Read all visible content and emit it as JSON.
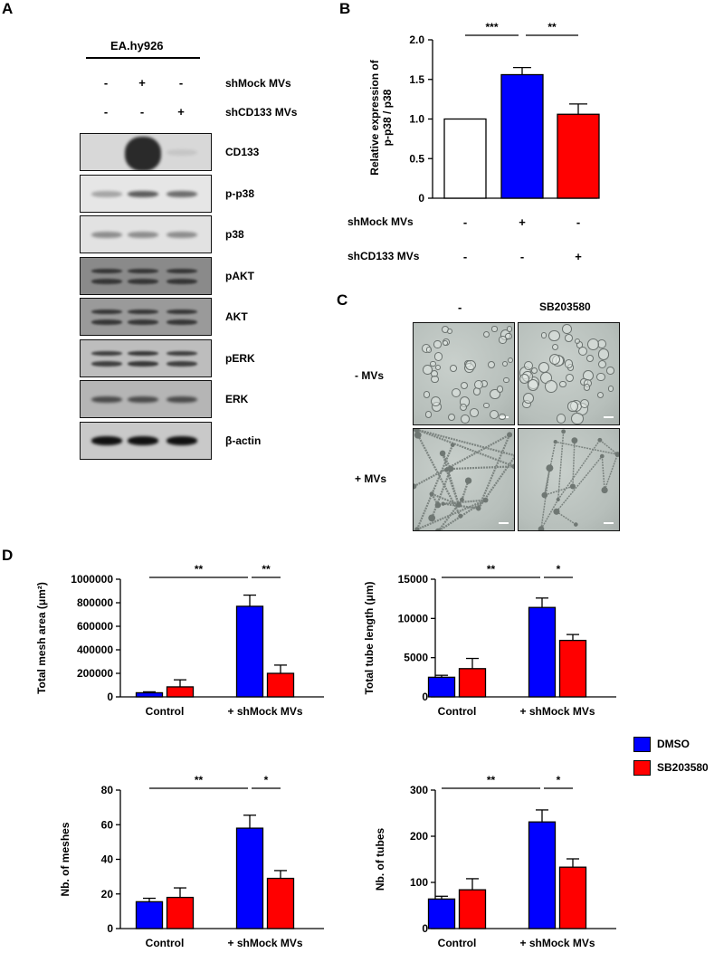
{
  "panel_a": {
    "label": "A",
    "cell_line": "EA.hy926",
    "rows": [
      {
        "name": "shMock MVs",
        "signs": [
          "-",
          "+",
          "-"
        ]
      },
      {
        "name": "shCD133 MVs",
        "signs": [
          "-",
          "-",
          "+"
        ]
      }
    ],
    "blots": [
      {
        "label": "CD133",
        "bg": "#d8d8d8",
        "band_intensity": [
          0.0,
          1.0,
          0.1
        ],
        "band_color": "#2a2a2a"
      },
      {
        "label": "p-p38",
        "bg": "#e6e6e6",
        "band_intensity": [
          0.4,
          0.85,
          0.75
        ],
        "band_color": "#444"
      },
      {
        "label": "p38",
        "bg": "#e2e2e2",
        "band_intensity": [
          0.6,
          0.6,
          0.6
        ],
        "band_color": "#555"
      },
      {
        "label": "pAKT",
        "bg": "#8a8a8a",
        "band_intensity": [
          0.9,
          0.9,
          0.9
        ],
        "band_color": "#2c2c2c"
      },
      {
        "label": "AKT",
        "bg": "#9a9a9a",
        "band_intensity": [
          0.9,
          0.9,
          0.9
        ],
        "band_color": "#2c2c2c"
      },
      {
        "label": "pERK",
        "bg": "#bdbdbd",
        "band_intensity": [
          0.85,
          0.9,
          0.85
        ],
        "band_color": "#2a2a2a"
      },
      {
        "label": "ERK",
        "bg": "#b5b5b5",
        "band_intensity": [
          0.8,
          0.8,
          0.8
        ],
        "band_color": "#303030"
      },
      {
        "label": "β-actin",
        "bg": "#c9c9c9",
        "band_intensity": [
          1.0,
          1.0,
          1.0
        ],
        "band_color": "#111"
      }
    ]
  },
  "panel_b": {
    "label": "B",
    "row_labels": [
      "shMock MVs",
      "shCD133 MVs"
    ],
    "row_signs": [
      [
        "-",
        "+",
        "-"
      ],
      [
        "-",
        "-",
        "+"
      ]
    ]
  },
  "panel_c": {
    "label": "C",
    "col_headers": [
      "-",
      "SB203580"
    ],
    "row_headers": [
      "- MVs",
      "+ MVs"
    ]
  },
  "panel_d": {
    "label": "D",
    "legend": [
      {
        "name": "DMSO",
        "color": "#0000ff"
      },
      {
        "name": "SB203580",
        "color": "#ff0000"
      }
    ]
  },
  "chart_data": [
    {
      "id": "B",
      "type": "bar",
      "ylabel": "Relative expression of\np-p38 / p38",
      "ylim": [
        0,
        2.0
      ],
      "yticks": [
        "0",
        "0.5",
        "1.0",
        "1.5",
        "2.0"
      ],
      "yticks_v": [
        0,
        0.5,
        1.0,
        1.5,
        2.0
      ],
      "values": [
        1.0,
        1.56,
        1.06
      ],
      "errors": [
        0,
        0.09,
        0.13
      ],
      "colors": [
        "#ffffff",
        "#0000ff",
        "#ff0000"
      ],
      "significance": [
        {
          "from": 0,
          "to": 1,
          "label": "***"
        },
        {
          "from": 1,
          "to": 2,
          "label": "**"
        }
      ]
    },
    {
      "id": "D1",
      "type": "bar",
      "ylabel": "Total mesh area (μm²)",
      "ylim": [
        0,
        1000000
      ],
      "yticks": [
        "0",
        "200000",
        "400000",
        "600000",
        "800000",
        "1000000"
      ],
      "yticks_v": [
        0,
        200000,
        400000,
        600000,
        800000,
        1000000
      ],
      "categories": [
        "Control",
        "+ shMock MVs"
      ],
      "series": [
        {
          "name": "DMSO",
          "values": [
            35000,
            770000
          ],
          "errors": [
            8000,
            95000
          ]
        },
        {
          "name": "SB203580",
          "values": [
            85000,
            200000
          ],
          "errors": [
            60000,
            70000
          ]
        }
      ],
      "significance": [
        {
          "label": "**",
          "span": "control-dmso"
        },
        {
          "label": "**",
          "span": "dmso-sb"
        }
      ]
    },
    {
      "id": "D2",
      "type": "bar",
      "ylabel": "Total tube length (μm)",
      "ylim": [
        0,
        15000
      ],
      "yticks": [
        "0",
        "5000",
        "10000",
        "15000"
      ],
      "yticks_v": [
        0,
        5000,
        10000,
        15000
      ],
      "categories": [
        "Control",
        "+ shMock MVs"
      ],
      "series": [
        {
          "name": "DMSO",
          "values": [
            2500,
            11400
          ],
          "errors": [
            250,
            1200
          ]
        },
        {
          "name": "SB203580",
          "values": [
            3600,
            7200
          ],
          "errors": [
            1300,
            750
          ]
        }
      ],
      "significance": [
        {
          "label": "**",
          "span": "control-dmso"
        },
        {
          "label": "*",
          "span": "dmso-sb"
        }
      ]
    },
    {
      "id": "D3",
      "type": "bar",
      "ylabel": "Nb. of meshes",
      "ylim": [
        0,
        80
      ],
      "yticks": [
        "0",
        "20",
        "40",
        "60",
        "80"
      ],
      "yticks_v": [
        0,
        20,
        40,
        60,
        80
      ],
      "categories": [
        "Control",
        "+ shMock MVs"
      ],
      "series": [
        {
          "name": "DMSO",
          "values": [
            15.5,
            58
          ],
          "errors": [
            2,
            7.5
          ]
        },
        {
          "name": "SB203580",
          "values": [
            18,
            29
          ],
          "errors": [
            5.5,
            4.5
          ]
        }
      ],
      "significance": [
        {
          "label": "**",
          "span": "control-dmso"
        },
        {
          "label": "*",
          "span": "dmso-sb"
        }
      ]
    },
    {
      "id": "D4",
      "type": "bar",
      "ylabel": "Nb. of tubes",
      "ylim": [
        0,
        300
      ],
      "yticks": [
        "0",
        "100",
        "200",
        "300"
      ],
      "yticks_v": [
        0,
        100,
        200,
        300
      ],
      "categories": [
        "Control",
        "+ shMock MVs"
      ],
      "series": [
        {
          "name": "DMSO",
          "values": [
            64,
            231
          ],
          "errors": [
            6,
            26
          ]
        },
        {
          "name": "SB203580",
          "values": [
            84,
            133
          ],
          "errors": [
            24,
            18
          ]
        }
      ],
      "significance": [
        {
          "label": "**",
          "span": "control-dmso"
        },
        {
          "label": "*",
          "span": "dmso-sb"
        }
      ]
    }
  ]
}
